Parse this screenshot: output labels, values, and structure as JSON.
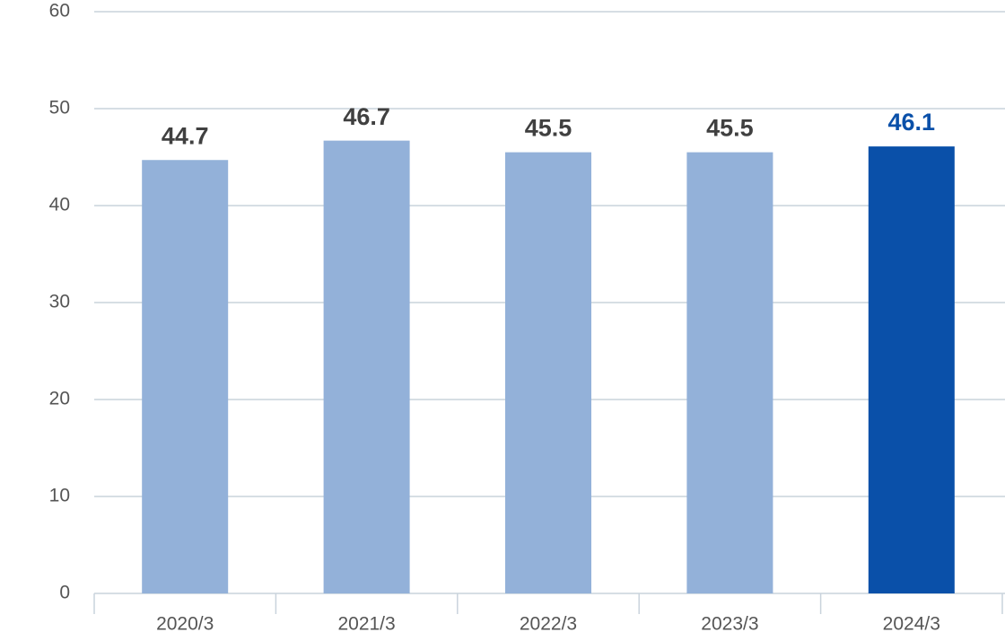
{
  "chart_data": {
    "type": "bar",
    "categories": [
      "2020/3",
      "2021/3",
      "2022/3",
      "2023/3",
      "2024/3"
    ],
    "values": [
      44.7,
      46.7,
      45.5,
      45.5,
      46.1
    ],
    "colors": [
      "#93b1d9",
      "#93b1d9",
      "#93b1d9",
      "#93b1d9",
      "#0a50a9"
    ],
    "label_colors": [
      "#404040",
      "#404040",
      "#404040",
      "#404040",
      "#0a50a9"
    ],
    "ylim": [
      0,
      60
    ],
    "yticks": [
      0,
      10,
      20,
      30,
      40,
      50,
      60
    ],
    "grid": true
  }
}
